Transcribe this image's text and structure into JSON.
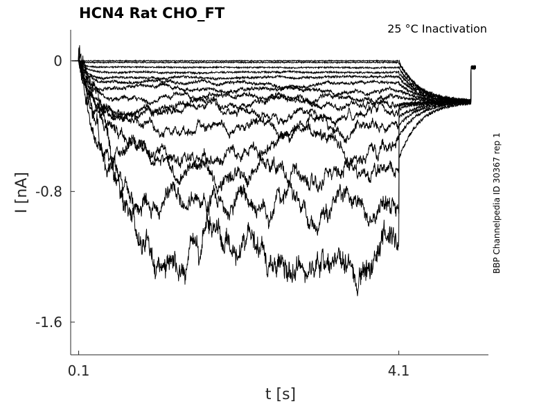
{
  "chart_data": {
    "type": "line",
    "title": "HCN4  Rat  CHO_FT",
    "subtitle": "25 °C  Inactivation",
    "side_label": "BBP Channelpedia ID 30367 rep 1",
    "xlabel": "t [s]",
    "ylabel": "I [nA]",
    "xlim": [
      0,
      5.22
    ],
    "ylim": [
      -1.8,
      0.19
    ],
    "xticks": [
      {
        "value": 0.1,
        "label": "0.1"
      },
      {
        "value": 4.1,
        "label": "4.1"
      }
    ],
    "yticks": [
      {
        "value": 0,
        "label": "0"
      },
      {
        "value": -0.8,
        "label": "-0.8"
      },
      {
        "value": -1.6,
        "label": "-1.6"
      }
    ],
    "grid": false,
    "pulse_start_s": 0.1,
    "pulse_end_s": 4.1,
    "tail_end_s": 5.0,
    "tail_level_nA": -0.25,
    "series_steady_state_nA": [
      0,
      -0.01,
      -0.04,
      -0.07,
      -0.1,
      -0.14,
      -0.18,
      -0.22,
      -0.27,
      -0.31,
      -0.38,
      -0.52,
      -0.66,
      -0.86,
      -1.25
    ],
    "color": "#000000"
  }
}
